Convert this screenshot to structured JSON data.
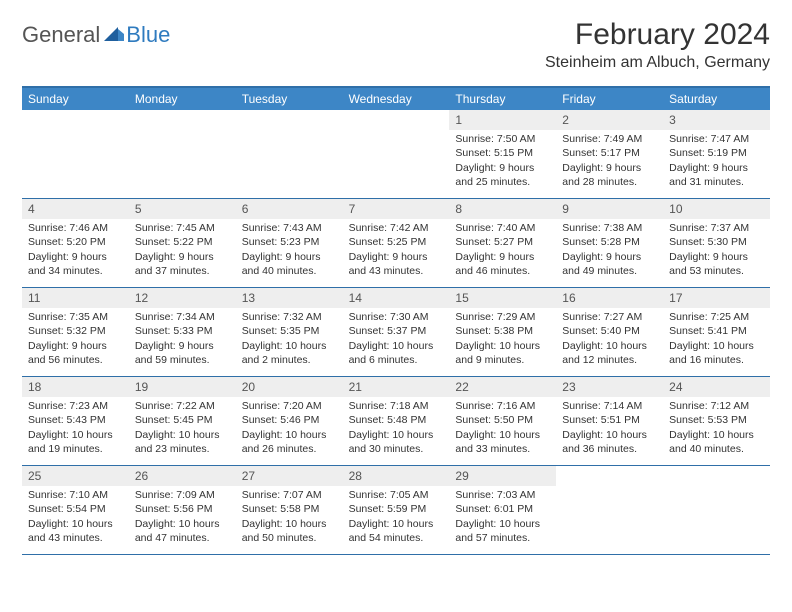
{
  "logo": {
    "general": "General",
    "blue": "Blue"
  },
  "title": "February 2024",
  "subtitle": "Steinheim am Albuch, Germany",
  "colors": {
    "header_bar": "#3d86c6",
    "rule": "#2f6fa8",
    "daynum_bg": "#eeeeee",
    "text": "#333333",
    "logo_blue": "#2f7bbf"
  },
  "day_labels": [
    "Sunday",
    "Monday",
    "Tuesday",
    "Wednesday",
    "Thursday",
    "Friday",
    "Saturday"
  ],
  "weeks": [
    [
      null,
      null,
      null,
      null,
      {
        "n": "1",
        "sr": "Sunrise: 7:50 AM",
        "ss": "Sunset: 5:15 PM",
        "d1": "Daylight: 9 hours",
        "d2": "and 25 minutes."
      },
      {
        "n": "2",
        "sr": "Sunrise: 7:49 AM",
        "ss": "Sunset: 5:17 PM",
        "d1": "Daylight: 9 hours",
        "d2": "and 28 minutes."
      },
      {
        "n": "3",
        "sr": "Sunrise: 7:47 AM",
        "ss": "Sunset: 5:19 PM",
        "d1": "Daylight: 9 hours",
        "d2": "and 31 minutes."
      }
    ],
    [
      {
        "n": "4",
        "sr": "Sunrise: 7:46 AM",
        "ss": "Sunset: 5:20 PM",
        "d1": "Daylight: 9 hours",
        "d2": "and 34 minutes."
      },
      {
        "n": "5",
        "sr": "Sunrise: 7:45 AM",
        "ss": "Sunset: 5:22 PM",
        "d1": "Daylight: 9 hours",
        "d2": "and 37 minutes."
      },
      {
        "n": "6",
        "sr": "Sunrise: 7:43 AM",
        "ss": "Sunset: 5:23 PM",
        "d1": "Daylight: 9 hours",
        "d2": "and 40 minutes."
      },
      {
        "n": "7",
        "sr": "Sunrise: 7:42 AM",
        "ss": "Sunset: 5:25 PM",
        "d1": "Daylight: 9 hours",
        "d2": "and 43 minutes."
      },
      {
        "n": "8",
        "sr": "Sunrise: 7:40 AM",
        "ss": "Sunset: 5:27 PM",
        "d1": "Daylight: 9 hours",
        "d2": "and 46 minutes."
      },
      {
        "n": "9",
        "sr": "Sunrise: 7:38 AM",
        "ss": "Sunset: 5:28 PM",
        "d1": "Daylight: 9 hours",
        "d2": "and 49 minutes."
      },
      {
        "n": "10",
        "sr": "Sunrise: 7:37 AM",
        "ss": "Sunset: 5:30 PM",
        "d1": "Daylight: 9 hours",
        "d2": "and 53 minutes."
      }
    ],
    [
      {
        "n": "11",
        "sr": "Sunrise: 7:35 AM",
        "ss": "Sunset: 5:32 PM",
        "d1": "Daylight: 9 hours",
        "d2": "and 56 minutes."
      },
      {
        "n": "12",
        "sr": "Sunrise: 7:34 AM",
        "ss": "Sunset: 5:33 PM",
        "d1": "Daylight: 9 hours",
        "d2": "and 59 minutes."
      },
      {
        "n": "13",
        "sr": "Sunrise: 7:32 AM",
        "ss": "Sunset: 5:35 PM",
        "d1": "Daylight: 10 hours",
        "d2": "and 2 minutes."
      },
      {
        "n": "14",
        "sr": "Sunrise: 7:30 AM",
        "ss": "Sunset: 5:37 PM",
        "d1": "Daylight: 10 hours",
        "d2": "and 6 minutes."
      },
      {
        "n": "15",
        "sr": "Sunrise: 7:29 AM",
        "ss": "Sunset: 5:38 PM",
        "d1": "Daylight: 10 hours",
        "d2": "and 9 minutes."
      },
      {
        "n": "16",
        "sr": "Sunrise: 7:27 AM",
        "ss": "Sunset: 5:40 PM",
        "d1": "Daylight: 10 hours",
        "d2": "and 12 minutes."
      },
      {
        "n": "17",
        "sr": "Sunrise: 7:25 AM",
        "ss": "Sunset: 5:41 PM",
        "d1": "Daylight: 10 hours",
        "d2": "and 16 minutes."
      }
    ],
    [
      {
        "n": "18",
        "sr": "Sunrise: 7:23 AM",
        "ss": "Sunset: 5:43 PM",
        "d1": "Daylight: 10 hours",
        "d2": "and 19 minutes."
      },
      {
        "n": "19",
        "sr": "Sunrise: 7:22 AM",
        "ss": "Sunset: 5:45 PM",
        "d1": "Daylight: 10 hours",
        "d2": "and 23 minutes."
      },
      {
        "n": "20",
        "sr": "Sunrise: 7:20 AM",
        "ss": "Sunset: 5:46 PM",
        "d1": "Daylight: 10 hours",
        "d2": "and 26 minutes."
      },
      {
        "n": "21",
        "sr": "Sunrise: 7:18 AM",
        "ss": "Sunset: 5:48 PM",
        "d1": "Daylight: 10 hours",
        "d2": "and 30 minutes."
      },
      {
        "n": "22",
        "sr": "Sunrise: 7:16 AM",
        "ss": "Sunset: 5:50 PM",
        "d1": "Daylight: 10 hours",
        "d2": "and 33 minutes."
      },
      {
        "n": "23",
        "sr": "Sunrise: 7:14 AM",
        "ss": "Sunset: 5:51 PM",
        "d1": "Daylight: 10 hours",
        "d2": "and 36 minutes."
      },
      {
        "n": "24",
        "sr": "Sunrise: 7:12 AM",
        "ss": "Sunset: 5:53 PM",
        "d1": "Daylight: 10 hours",
        "d2": "and 40 minutes."
      }
    ],
    [
      {
        "n": "25",
        "sr": "Sunrise: 7:10 AM",
        "ss": "Sunset: 5:54 PM",
        "d1": "Daylight: 10 hours",
        "d2": "and 43 minutes."
      },
      {
        "n": "26",
        "sr": "Sunrise: 7:09 AM",
        "ss": "Sunset: 5:56 PM",
        "d1": "Daylight: 10 hours",
        "d2": "and 47 minutes."
      },
      {
        "n": "27",
        "sr": "Sunrise: 7:07 AM",
        "ss": "Sunset: 5:58 PM",
        "d1": "Daylight: 10 hours",
        "d2": "and 50 minutes."
      },
      {
        "n": "28",
        "sr": "Sunrise: 7:05 AM",
        "ss": "Sunset: 5:59 PM",
        "d1": "Daylight: 10 hours",
        "d2": "and 54 minutes."
      },
      {
        "n": "29",
        "sr": "Sunrise: 7:03 AM",
        "ss": "Sunset: 6:01 PM",
        "d1": "Daylight: 10 hours",
        "d2": "and 57 minutes."
      },
      null,
      null
    ]
  ]
}
